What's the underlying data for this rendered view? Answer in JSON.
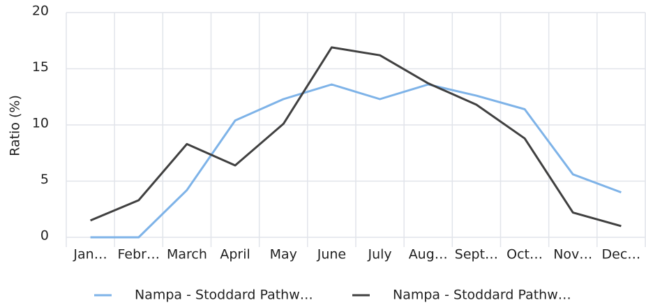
{
  "chart_data": {
    "type": "line",
    "y_label": "Ratio (%)",
    "categories": [
      "Jan…",
      "Febr…",
      "March",
      "April",
      "May",
      "June",
      "July",
      "Aug…",
      "Sept…",
      "Oct…",
      "Nov…",
      "Dec…"
    ],
    "series": [
      {
        "name": "Nampa - Stoddard Pathw…",
        "color": "#7eb3e8",
        "values": [
          0,
          0,
          4.2,
          10.4,
          12.3,
          13.6,
          12.3,
          13.6,
          12.6,
          11.4,
          5.6,
          4.0
        ]
      },
      {
        "name": "Nampa - Stoddard Pathw…",
        "color": "#404040",
        "values": [
          1.5,
          3.3,
          8.3,
          6.4,
          10.1,
          16.9,
          16.2,
          13.7,
          11.8,
          8.8,
          2.2,
          1.0
        ]
      }
    ],
    "ylim": [
      0,
      20
    ],
    "yticks": [
      0,
      5,
      10,
      15,
      20
    ],
    "grid": true,
    "legend": "bottom"
  }
}
